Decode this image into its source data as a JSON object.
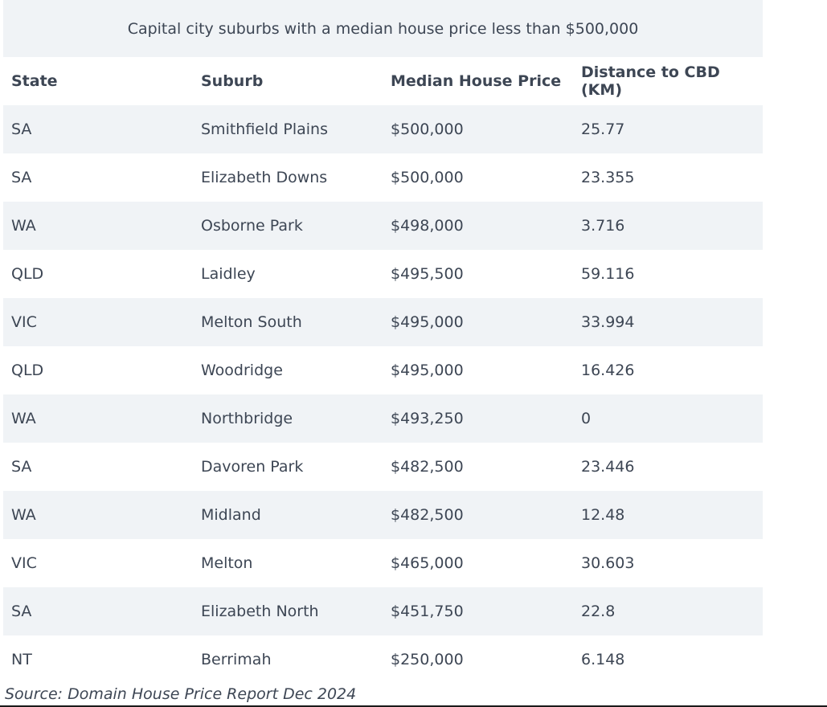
{
  "table": {
    "caption": "Capital city suburbs with a median house price less than $500,000",
    "headers": [
      "State",
      "Suburb",
      "Median House Price",
      "Distance to CBD (KM)"
    ],
    "rows": [
      [
        "SA",
        "Smithfield Plains",
        "$500,000",
        "25.77"
      ],
      [
        "SA",
        "Elizabeth Downs",
        "$500,000",
        "23.355"
      ],
      [
        "WA",
        "Osborne Park",
        "$498,000",
        "3.716"
      ],
      [
        "QLD",
        "Laidley",
        "$495,500",
        "59.116"
      ],
      [
        "VIC",
        "Melton South",
        "$495,000",
        "33.994"
      ],
      [
        "QLD",
        "Woodridge",
        "$495,000",
        "16.426"
      ],
      [
        "WA",
        "Northbridge",
        "$493,250",
        "0"
      ],
      [
        "SA",
        "Davoren Park",
        "$482,500",
        "23.446"
      ],
      [
        "WA",
        "Midland",
        "$482,500",
        "12.48"
      ],
      [
        "VIC",
        "Melton",
        "$465,000",
        "30.603"
      ],
      [
        "SA",
        "Elizabeth North",
        "$451,750",
        "22.8"
      ],
      [
        "NT",
        "Berrimah",
        "$250,000",
        "6.148"
      ]
    ]
  },
  "source": "Source: Domain House Price Report Dec 2024",
  "colors": {
    "band": "#f0f3f6",
    "text": "#3d4654"
  }
}
